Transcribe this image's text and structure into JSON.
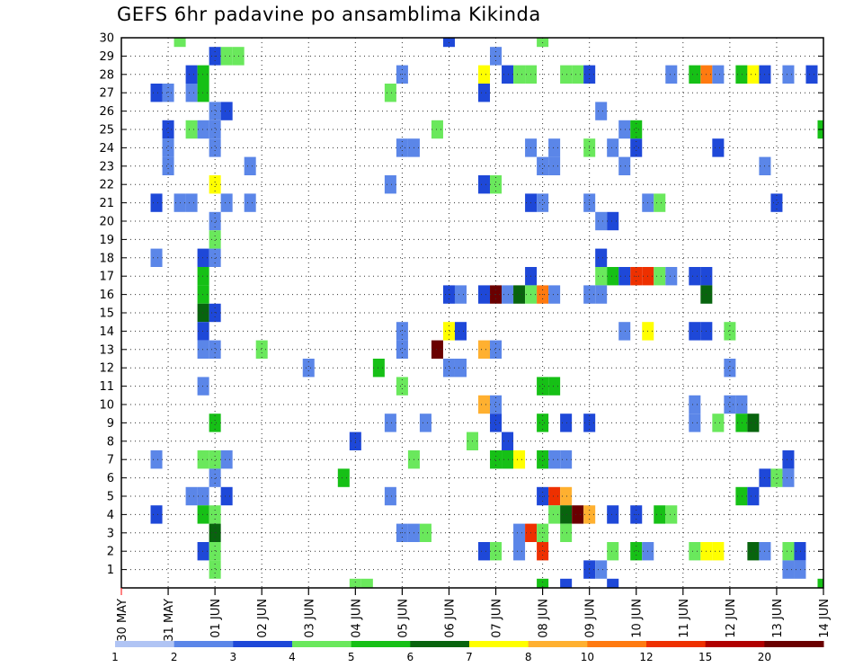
{
  "chart_data": {
    "type": "heatmap",
    "title": "GEFS 6hr padavine po ansamblima Kikinda",
    "xlabel": "",
    "ylabel": "",
    "x_tick_labels": [
      "30 MAY",
      "31 MAY",
      "01 JUN",
      "02 JUN",
      "03 JUN",
      "04 JUN",
      "05 JUN",
      "06 JUN",
      "07 JUN",
      "08 JUN",
      "09 JUN",
      "10 JUN",
      "11 JUN",
      "12 JUN",
      "13 JUN",
      "14 JUN"
    ],
    "x_unit": "6-hour step",
    "x_range": [
      0,
      60
    ],
    "y_tick_labels": [
      "1",
      "2",
      "3",
      "4",
      "5",
      "6",
      "7",
      "8",
      "9",
      "10",
      "11",
      "12",
      "13",
      "14",
      "15",
      "16",
      "17",
      "18",
      "19",
      "20",
      "21",
      "22",
      "23",
      "24",
      "25",
      "26",
      "27",
      "28",
      "29",
      "30"
    ],
    "y_range": [
      0,
      30
    ],
    "grid": true,
    "colorbar": {
      "labels": [
        "1",
        "2",
        "3",
        "4",
        "5",
        "6",
        "7",
        "8",
        "10",
        "12",
        "15",
        "20"
      ],
      "colors": [
        "#b0c4f4",
        "#5b86e8",
        "#1e48d8",
        "#6ae85c",
        "#16c016",
        "#08640e",
        "#ffff00",
        "#ffb030",
        "#ff7a10",
        "#ee3000",
        "#b00000",
        "#6a0000"
      ]
    },
    "cells": [
      [
        28,
        30,
        2
      ],
      [
        5,
        30,
        3
      ],
      [
        36,
        30,
        3
      ],
      [
        8,
        29,
        2
      ],
      [
        9,
        29,
        3
      ],
      [
        10,
        29,
        3
      ],
      [
        32,
        29,
        1
      ],
      [
        6,
        28,
        2
      ],
      [
        7,
        28,
        4
      ],
      [
        24,
        28,
        1
      ],
      [
        31,
        28,
        6
      ],
      [
        33,
        28,
        2
      ],
      [
        34,
        28,
        3
      ],
      [
        35,
        28,
        3
      ],
      [
        38,
        28,
        3
      ],
      [
        39,
        28,
        3
      ],
      [
        40,
        28,
        2
      ],
      [
        47,
        28,
        1
      ],
      [
        49,
        28,
        4
      ],
      [
        50,
        28,
        8
      ],
      [
        51,
        28,
        1
      ],
      [
        53,
        28,
        4
      ],
      [
        54,
        28,
        6
      ],
      [
        55,
        28,
        2
      ],
      [
        57,
        28,
        1
      ],
      [
        59,
        28,
        2
      ],
      [
        3,
        27,
        2
      ],
      [
        4,
        27,
        1
      ],
      [
        6,
        27,
        1
      ],
      [
        7,
        27,
        4
      ],
      [
        23,
        27,
        3
      ],
      [
        31,
        27,
        2
      ],
      [
        8,
        26,
        1
      ],
      [
        9,
        26,
        2
      ],
      [
        41,
        26,
        1
      ],
      [
        4,
        25,
        2
      ],
      [
        6,
        25,
        3
      ],
      [
        7,
        25,
        1
      ],
      [
        8,
        25,
        1
      ],
      [
        27,
        25,
        3
      ],
      [
        43,
        25,
        1
      ],
      [
        44,
        25,
        4
      ],
      [
        60,
        25,
        4
      ],
      [
        4,
        24,
        1
      ],
      [
        8,
        24,
        1
      ],
      [
        24,
        24,
        1
      ],
      [
        25,
        24,
        1
      ],
      [
        35,
        24,
        1
      ],
      [
        37,
        24,
        1
      ],
      [
        40,
        24,
        3
      ],
      [
        42,
        24,
        1
      ],
      [
        44,
        24,
        2
      ],
      [
        51,
        24,
        2
      ],
      [
        4,
        23,
        1
      ],
      [
        11,
        23,
        1
      ],
      [
        36,
        23,
        1
      ],
      [
        37,
        23,
        1
      ],
      [
        43,
        23,
        1
      ],
      [
        55,
        23,
        1
      ],
      [
        8,
        22,
        6
      ],
      [
        23,
        22,
        1
      ],
      [
        31,
        22,
        2
      ],
      [
        32,
        22,
        3
      ],
      [
        3,
        21,
        2
      ],
      [
        5,
        21,
        1
      ],
      [
        6,
        21,
        1
      ],
      [
        9,
        21,
        1
      ],
      [
        11,
        21,
        1
      ],
      [
        35,
        21,
        2
      ],
      [
        36,
        21,
        1
      ],
      [
        40,
        21,
        1
      ],
      [
        45,
        21,
        1
      ],
      [
        46,
        21,
        3
      ],
      [
        56,
        21,
        2
      ],
      [
        8,
        20,
        1
      ],
      [
        41,
        20,
        1
      ],
      [
        42,
        20,
        2
      ],
      [
        8,
        19,
        3
      ],
      [
        3,
        18,
        1
      ],
      [
        7,
        18,
        2
      ],
      [
        8,
        18,
        1
      ],
      [
        41,
        18,
        2
      ],
      [
        7,
        17,
        4
      ],
      [
        35,
        17,
        2
      ],
      [
        41,
        17,
        3
      ],
      [
        42,
        17,
        4
      ],
      [
        43,
        17,
        2
      ],
      [
        44,
        17,
        9
      ],
      [
        45,
        17,
        9
      ],
      [
        46,
        17,
        3
      ],
      [
        47,
        17,
        1
      ],
      [
        49,
        17,
        2
      ],
      [
        50,
        17,
        2
      ],
      [
        7,
        16,
        4
      ],
      [
        28,
        16,
        2
      ],
      [
        29,
        16,
        1
      ],
      [
        31,
        16,
        2
      ],
      [
        32,
        16,
        11
      ],
      [
        33,
        16,
        1
      ],
      [
        34,
        16,
        5
      ],
      [
        35,
        16,
        3
      ],
      [
        36,
        16,
        8
      ],
      [
        37,
        16,
        1
      ],
      [
        40,
        16,
        1
      ],
      [
        41,
        16,
        1
      ],
      [
        50,
        16,
        5
      ],
      [
        7,
        15,
        5
      ],
      [
        8,
        15,
        2
      ],
      [
        7,
        14,
        2
      ],
      [
        24,
        14,
        1
      ],
      [
        28,
        14,
        6
      ],
      [
        29,
        14,
        2
      ],
      [
        43,
        14,
        1
      ],
      [
        45,
        14,
        6
      ],
      [
        49,
        14,
        2
      ],
      [
        50,
        14,
        2
      ],
      [
        52,
        14,
        3
      ],
      [
        7,
        13,
        1
      ],
      [
        8,
        13,
        1
      ],
      [
        12,
        13,
        3
      ],
      [
        24,
        13,
        1
      ],
      [
        27,
        13,
        11
      ],
      [
        31,
        13,
        7
      ],
      [
        32,
        13,
        1
      ],
      [
        16,
        12,
        1
      ],
      [
        22,
        12,
        4
      ],
      [
        28,
        12,
        1
      ],
      [
        29,
        12,
        1
      ],
      [
        52,
        12,
        1
      ],
      [
        7,
        11,
        1
      ],
      [
        24,
        11,
        3
      ],
      [
        36,
        11,
        4
      ],
      [
        37,
        11,
        4
      ],
      [
        31,
        10,
        7
      ],
      [
        32,
        10,
        1
      ],
      [
        49,
        10,
        1
      ],
      [
        52,
        10,
        1
      ],
      [
        53,
        10,
        1
      ],
      [
        8,
        9,
        4
      ],
      [
        23,
        9,
        1
      ],
      [
        26,
        9,
        1
      ],
      [
        32,
        9,
        2
      ],
      [
        36,
        9,
        4
      ],
      [
        38,
        9,
        2
      ],
      [
        40,
        9,
        2
      ],
      [
        49,
        9,
        1
      ],
      [
        51,
        9,
        3
      ],
      [
        53,
        9,
        4
      ],
      [
        54,
        9,
        5
      ],
      [
        20,
        8,
        2
      ],
      [
        30,
        8,
        3
      ],
      [
        33,
        8,
        2
      ],
      [
        3,
        7,
        1
      ],
      [
        7,
        7,
        3
      ],
      [
        8,
        7,
        3
      ],
      [
        9,
        7,
        1
      ],
      [
        25,
        7,
        3
      ],
      [
        32,
        7,
        4
      ],
      [
        33,
        7,
        4
      ],
      [
        34,
        7,
        6
      ],
      [
        36,
        7,
        4
      ],
      [
        37,
        7,
        1
      ],
      [
        38,
        7,
        1
      ],
      [
        57,
        7,
        2
      ],
      [
        8,
        6,
        1
      ],
      [
        19,
        6,
        4
      ],
      [
        55,
        6,
        2
      ],
      [
        56,
        6,
        3
      ],
      [
        57,
        6,
        1
      ],
      [
        6,
        5,
        1
      ],
      [
        7,
        5,
        1
      ],
      [
        9,
        5,
        2
      ],
      [
        23,
        5,
        1
      ],
      [
        36,
        5,
        2
      ],
      [
        37,
        5,
        9
      ],
      [
        38,
        5,
        7
      ],
      [
        53,
        5,
        4
      ],
      [
        54,
        5,
        2
      ],
      [
        3,
        4,
        2
      ],
      [
        7,
        4,
        4
      ],
      [
        8,
        4,
        3
      ],
      [
        37,
        4,
        3
      ],
      [
        38,
        4,
        5
      ],
      [
        39,
        4,
        11
      ],
      [
        40,
        4,
        7
      ],
      [
        42,
        4,
        2
      ],
      [
        44,
        4,
        2
      ],
      [
        46,
        4,
        4
      ],
      [
        47,
        4,
        3
      ],
      [
        8,
        3,
        5
      ],
      [
        24,
        3,
        1
      ],
      [
        25,
        3,
        1
      ],
      [
        26,
        3,
        3
      ],
      [
        34,
        3,
        1
      ],
      [
        35,
        3,
        9
      ],
      [
        36,
        3,
        3
      ],
      [
        38,
        3,
        3
      ],
      [
        7,
        2,
        2
      ],
      [
        8,
        2,
        3
      ],
      [
        31,
        2,
        2
      ],
      [
        32,
        2,
        3
      ],
      [
        34,
        2,
        1
      ],
      [
        36,
        2,
        9
      ],
      [
        42,
        2,
        3
      ],
      [
        44,
        2,
        4
      ],
      [
        45,
        2,
        1
      ],
      [
        49,
        2,
        3
      ],
      [
        50,
        2,
        6
      ],
      [
        51,
        2,
        6
      ],
      [
        54,
        2,
        5
      ],
      [
        55,
        2,
        1
      ],
      [
        57,
        2,
        3
      ],
      [
        58,
        2,
        2
      ],
      [
        8,
        1,
        3
      ],
      [
        40,
        1,
        2
      ],
      [
        41,
        1,
        1
      ],
      [
        57,
        1,
        1
      ],
      [
        58,
        1,
        1
      ],
      [
        20,
        0,
        3
      ],
      [
        21,
        0,
        3
      ],
      [
        36,
        0,
        4
      ],
      [
        38,
        0,
        2
      ],
      [
        42,
        0,
        2
      ],
      [
        60,
        0,
        4
      ]
    ]
  }
}
